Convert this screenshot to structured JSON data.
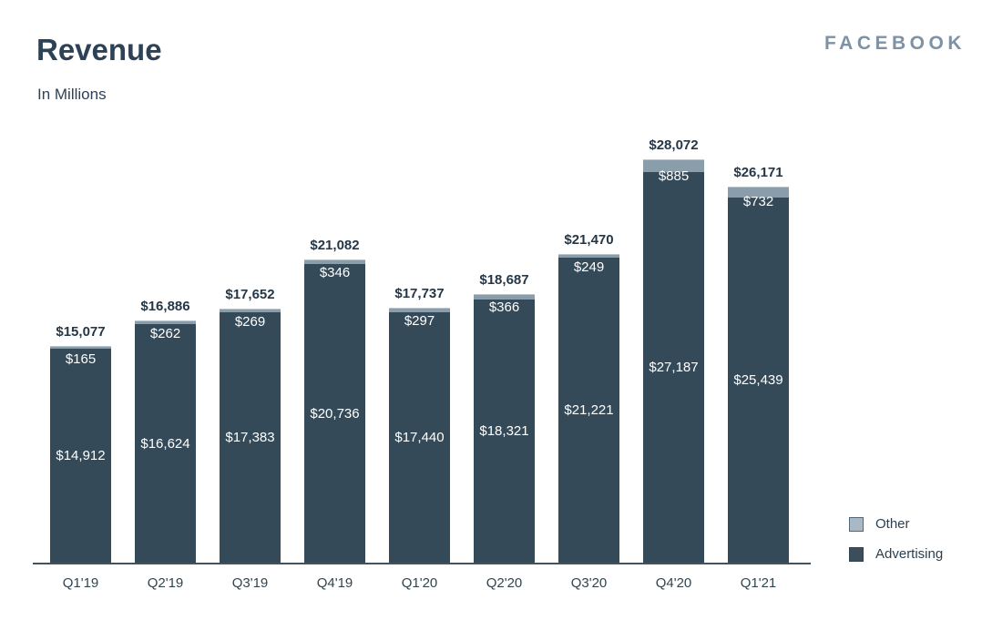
{
  "header": {
    "title": "Revenue",
    "subtitle": "In Millions",
    "brand": "FACEBOOK"
  },
  "legend": {
    "items": [
      {
        "label": "Other",
        "color": "#a8b8c5",
        "border": "#51677a"
      },
      {
        "label": "Advertising",
        "color": "#3a4e5c",
        "border": "#31434f"
      }
    ]
  },
  "colors": {
    "advertising_fill": "#354a59",
    "other_fill": "#8a9dab",
    "other_top_edge": "#b9c5ce",
    "axis_line": "#42525e",
    "total_label": "#243748",
    "bar_value_label": "#ffffff",
    "title_text": "#2d4256",
    "brand_text": "#7e92a5",
    "x_label": "#31454f"
  },
  "chart_data": {
    "type": "bar",
    "stacked": true,
    "title": "Revenue",
    "subtitle": "In Millions",
    "unit": "USD millions",
    "value_prefix": "$",
    "categories": [
      "Q1'19",
      "Q2'19",
      "Q3'19",
      "Q4'19",
      "Q1'20",
      "Q2'20",
      "Q3'20",
      "Q4'20",
      "Q1'21"
    ],
    "series": [
      {
        "name": "Advertising",
        "values": [
          14912,
          16624,
          17383,
          20736,
          17440,
          18321,
          21221,
          27187,
          25439
        ]
      },
      {
        "name": "Other",
        "values": [
          165,
          262,
          269,
          346,
          297,
          366,
          249,
          885,
          732
        ]
      }
    ],
    "totals": [
      15077,
      16886,
      17652,
      21082,
      17737,
      18687,
      21470,
      28072,
      26171
    ],
    "ylim": [
      0,
      28500
    ],
    "grid": false,
    "legend_position": "bottom-right"
  }
}
